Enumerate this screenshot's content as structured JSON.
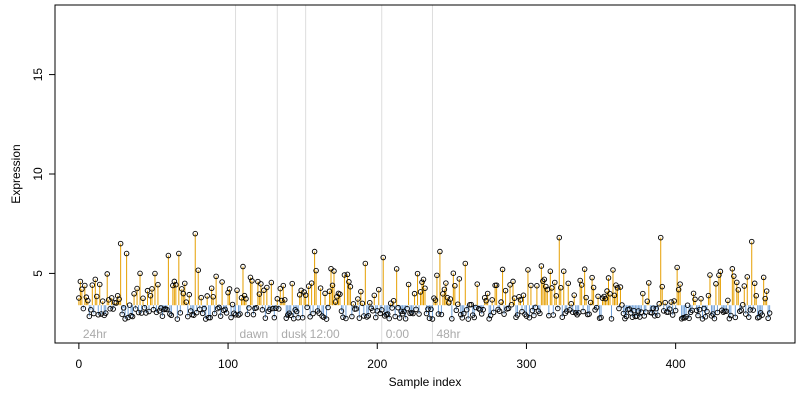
{
  "chart_data": {
    "type": "scatter",
    "xlabel": "Sample index",
    "ylabel": "Expression",
    "xlim": [
      -16,
      480
    ],
    "ylim": [
      1.5,
      18.5
    ],
    "xticks": [
      0,
      100,
      200,
      300,
      400
    ],
    "yticks": [
      5,
      10,
      15
    ],
    "baseline": 3.4,
    "colors": {
      "above": "#e69f00",
      "below": "#6fa0d8",
      "grid": "#dddddd"
    },
    "grid_vertical": true,
    "groups": [
      {
        "label": "24hr",
        "start": 0
      },
      {
        "label": "dawn",
        "start": 105
      },
      {
        "label": "dusk",
        "start": 133
      },
      {
        "label": "12:00",
        "start": 152
      },
      {
        "label": "0:00",
        "start": 203
      },
      {
        "label": "48hr",
        "start": 237
      }
    ],
    "peaks": [
      {
        "x": 11,
        "y": 4.7
      },
      {
        "x": 28,
        "y": 6.5
      },
      {
        "x": 32,
        "y": 6.0
      },
      {
        "x": 41,
        "y": 5.0
      },
      {
        "x": 60,
        "y": 5.9
      },
      {
        "x": 67,
        "y": 6.0
      },
      {
        "x": 78,
        "y": 7.0
      },
      {
        "x": 115,
        "y": 4.8
      },
      {
        "x": 158,
        "y": 6.1
      },
      {
        "x": 192,
        "y": 5.5
      },
      {
        "x": 204,
        "y": 5.8
      },
      {
        "x": 242,
        "y": 6.1
      },
      {
        "x": 259,
        "y": 5.5
      },
      {
        "x": 284,
        "y": 5.2
      },
      {
        "x": 322,
        "y": 6.8
      },
      {
        "x": 390,
        "y": 6.8
      },
      {
        "x": 401,
        "y": 5.3
      },
      {
        "x": 430,
        "y": 5.1
      },
      {
        "x": 451,
        "y": 6.6
      },
      {
        "x": 459,
        "y": 4.8
      }
    ],
    "n": 464,
    "low_range": [
      2.7,
      3.3
    ],
    "mid_range": [
      3.4,
      4.6
    ]
  }
}
